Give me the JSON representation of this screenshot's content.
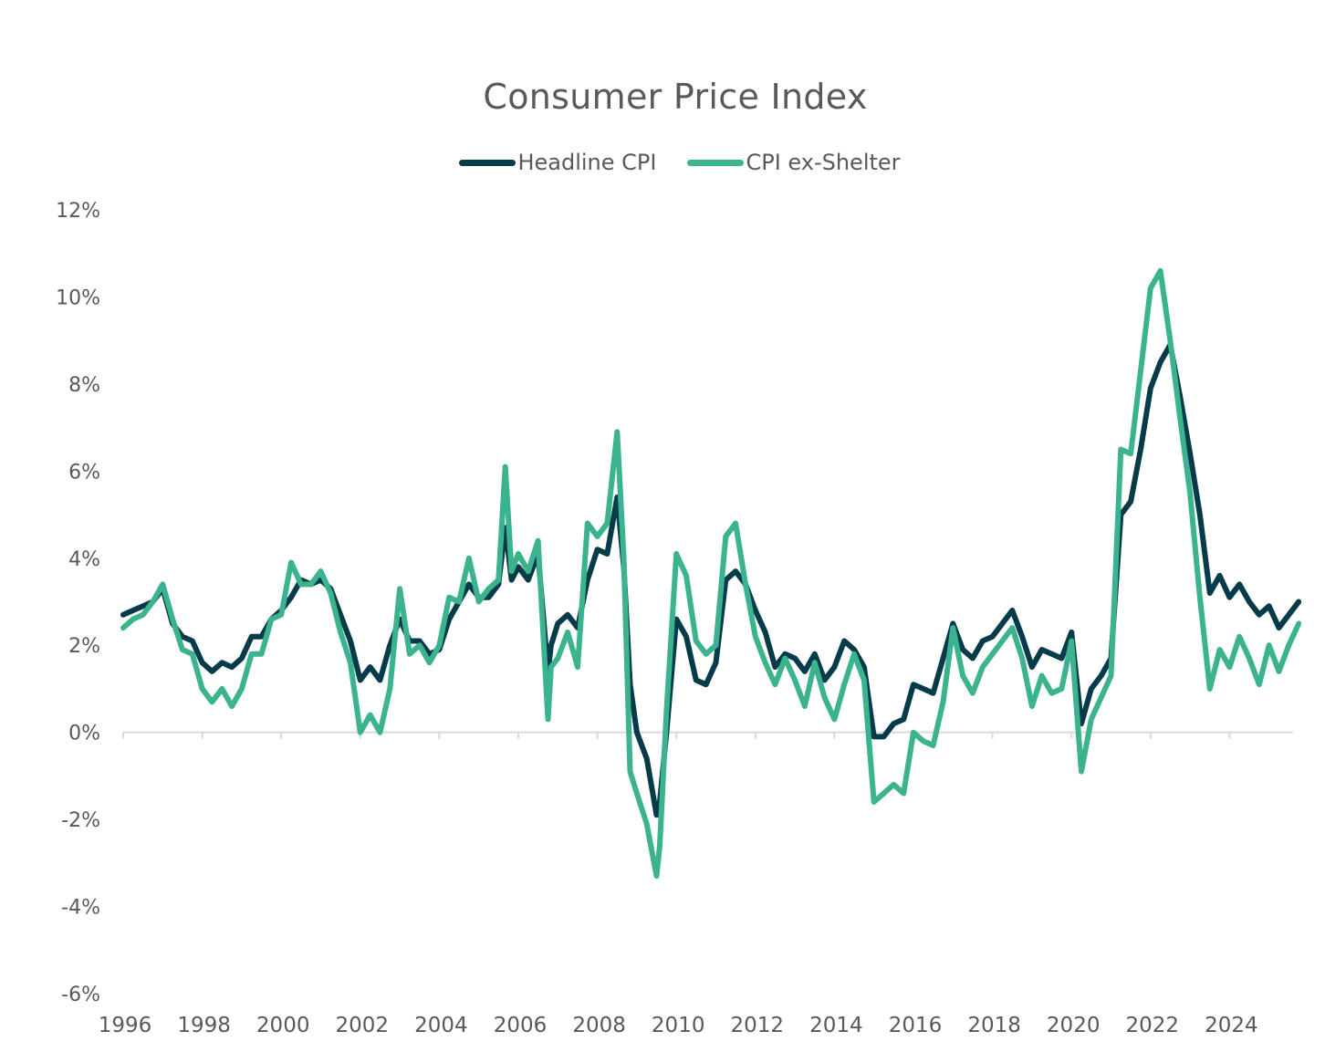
{
  "chart_data": {
    "type": "line",
    "title": "Consumer Price Index",
    "xlabel": "",
    "ylabel": "",
    "xlim": [
      1996,
      2025.75
    ],
    "ylim": [
      -6,
      12
    ],
    "y_ticks": [
      -6,
      -4,
      -2,
      0,
      2,
      4,
      6,
      8,
      10,
      12
    ],
    "y_tick_labels": [
      "-6%",
      "-4%",
      "-2%",
      "0%",
      "2%",
      "4%",
      "6%",
      "8%",
      "10%",
      "12%"
    ],
    "x_ticks": [
      1996,
      1998,
      2000,
      2002,
      2004,
      2006,
      2008,
      2010,
      2012,
      2014,
      2016,
      2018,
      2020,
      2022,
      2024
    ],
    "x_tick_labels": [
      "1996",
      "1998",
      "2000",
      "2002",
      "2004",
      "2006",
      "2008",
      "2010",
      "2012",
      "2014",
      "2016",
      "2018",
      "2020",
      "2022",
      "2024"
    ],
    "grid": false,
    "zero_line": true,
    "legend_position": "top-center",
    "series": [
      {
        "name": "Headline CPI",
        "color": "#063b4a",
        "x": [
          1996.0,
          1996.25,
          1996.5,
          1996.75,
          1997.0,
          1997.25,
          1997.5,
          1997.75,
          1998.0,
          1998.25,
          1998.5,
          1998.75,
          1999.0,
          1999.25,
          1999.5,
          1999.75,
          2000.0,
          2000.25,
          2000.5,
          2000.75,
          2001.0,
          2001.25,
          2001.5,
          2001.75,
          2002.0,
          2002.25,
          2002.5,
          2002.75,
          2003.0,
          2003.25,
          2003.5,
          2003.75,
          2004.0,
          2004.25,
          2004.5,
          2004.75,
          2005.0,
          2005.25,
          2005.5,
          2005.67,
          2005.83,
          2006.0,
          2006.25,
          2006.5,
          2006.75,
          2006.83,
          2007.0,
          2007.25,
          2007.5,
          2007.75,
          2008.0,
          2008.25,
          2008.5,
          2008.67,
          2008.83,
          2009.0,
          2009.25,
          2009.5,
          2009.58,
          2009.75,
          2010.0,
          2010.25,
          2010.5,
          2010.75,
          2011.0,
          2011.25,
          2011.5,
          2011.75,
          2012.0,
          2012.25,
          2012.5,
          2012.75,
          2013.0,
          2013.25,
          2013.5,
          2013.75,
          2014.0,
          2014.25,
          2014.5,
          2014.75,
          2015.0,
          2015.25,
          2015.5,
          2015.75,
          2016.0,
          2016.25,
          2016.5,
          2016.75,
          2017.0,
          2017.25,
          2017.5,
          2017.75,
          2018.0,
          2018.25,
          2018.5,
          2018.75,
          2019.0,
          2019.25,
          2019.5,
          2019.75,
          2020.0,
          2020.25,
          2020.5,
          2020.75,
          2021.0,
          2021.25,
          2021.5,
          2021.75,
          2022.0,
          2022.25,
          2022.5,
          2022.75,
          2023.0,
          2023.25,
          2023.5,
          2023.75,
          2024.0,
          2024.25,
          2024.5,
          2024.75,
          2025.0,
          2025.25,
          2025.5,
          2025.75
        ],
        "values": [
          2.7,
          2.8,
          2.9,
          3.0,
          3.3,
          2.5,
          2.2,
          2.1,
          1.6,
          1.4,
          1.6,
          1.5,
          1.7,
          2.2,
          2.2,
          2.6,
          2.8,
          3.1,
          3.5,
          3.4,
          3.5,
          3.3,
          2.7,
          2.1,
          1.2,
          1.5,
          1.2,
          2.0,
          2.6,
          2.1,
          2.1,
          1.8,
          1.9,
          2.6,
          3.0,
          3.4,
          3.1,
          3.1,
          3.4,
          4.7,
          3.5,
          3.8,
          3.5,
          4.1,
          1.4,
          2.0,
          2.5,
          2.7,
          2.4,
          3.5,
          4.2,
          4.1,
          5.4,
          3.8,
          1.1,
          0.0,
          -0.6,
          -1.9,
          -1.6,
          0.0,
          2.6,
          2.2,
          1.2,
          1.1,
          1.6,
          3.5,
          3.7,
          3.4,
          2.8,
          2.3,
          1.5,
          1.8,
          1.7,
          1.4,
          1.8,
          1.2,
          1.5,
          2.1,
          1.9,
          1.5,
          -0.1,
          -0.1,
          0.2,
          0.3,
          1.1,
          1.0,
          0.9,
          1.7,
          2.5,
          1.9,
          1.7,
          2.1,
          2.2,
          2.5,
          2.8,
          2.2,
          1.5,
          1.9,
          1.8,
          1.7,
          2.3,
          0.2,
          1.0,
          1.3,
          1.7,
          5.0,
          5.3,
          6.5,
          7.9,
          8.5,
          8.9,
          7.7,
          6.4,
          5.0,
          3.2,
          3.6,
          3.1,
          3.4,
          3.0,
          2.7,
          2.9,
          2.4,
          2.7,
          3.0
        ]
      },
      {
        "name": "CPI ex-Shelter",
        "color": "#3bb38e",
        "x": [
          1996.0,
          1996.25,
          1996.5,
          1996.75,
          1997.0,
          1997.25,
          1997.5,
          1997.75,
          1998.0,
          1998.25,
          1998.5,
          1998.75,
          1999.0,
          1999.25,
          1999.5,
          1999.75,
          2000.0,
          2000.25,
          2000.5,
          2000.75,
          2001.0,
          2001.25,
          2001.5,
          2001.75,
          2002.0,
          2002.25,
          2002.5,
          2002.75,
          2003.0,
          2003.25,
          2003.5,
          2003.75,
          2004.0,
          2004.25,
          2004.5,
          2004.75,
          2005.0,
          2005.25,
          2005.5,
          2005.67,
          2005.83,
          2006.0,
          2006.25,
          2006.5,
          2006.75,
          2006.83,
          2007.0,
          2007.25,
          2007.5,
          2007.75,
          2008.0,
          2008.25,
          2008.5,
          2008.67,
          2008.83,
          2009.0,
          2009.25,
          2009.5,
          2009.58,
          2009.75,
          2010.0,
          2010.25,
          2010.5,
          2010.75,
          2011.0,
          2011.25,
          2011.5,
          2011.75,
          2012.0,
          2012.25,
          2012.5,
          2012.75,
          2013.0,
          2013.25,
          2013.5,
          2013.75,
          2014.0,
          2014.25,
          2014.5,
          2014.75,
          2015.0,
          2015.25,
          2015.5,
          2015.75,
          2016.0,
          2016.25,
          2016.5,
          2016.75,
          2017.0,
          2017.25,
          2017.5,
          2017.75,
          2018.0,
          2018.25,
          2018.5,
          2018.75,
          2019.0,
          2019.25,
          2019.5,
          2019.75,
          2020.0,
          2020.25,
          2020.5,
          2020.75,
          2021.0,
          2021.25,
          2021.5,
          2021.75,
          2022.0,
          2022.25,
          2022.5,
          2022.75,
          2023.0,
          2023.25,
          2023.5,
          2023.75,
          2024.0,
          2024.25,
          2024.5,
          2024.75,
          2025.0,
          2025.25,
          2025.5,
          2025.75
        ],
        "values": [
          2.4,
          2.6,
          2.7,
          3.0,
          3.4,
          2.6,
          1.9,
          1.8,
          1.0,
          0.7,
          1.0,
          0.6,
          1.0,
          1.8,
          1.8,
          2.6,
          2.7,
          3.9,
          3.4,
          3.4,
          3.7,
          3.2,
          2.3,
          1.6,
          0.0,
          0.4,
          0.0,
          1.0,
          3.3,
          1.8,
          2.0,
          1.6,
          2.0,
          3.1,
          3.0,
          4.0,
          3.0,
          3.3,
          3.5,
          6.1,
          3.7,
          4.1,
          3.7,
          4.4,
          0.3,
          1.5,
          1.7,
          2.3,
          1.5,
          4.8,
          4.5,
          4.8,
          6.9,
          4.0,
          -0.9,
          -1.4,
          -2.1,
          -3.3,
          -2.6,
          0.5,
          4.1,
          3.6,
          2.1,
          1.8,
          2.0,
          4.5,
          4.8,
          3.4,
          2.2,
          1.6,
          1.1,
          1.7,
          1.2,
          0.6,
          1.6,
          0.8,
          0.3,
          1.1,
          1.8,
          1.2,
          -1.6,
          -1.4,
          -1.2,
          -1.4,
          0.0,
          -0.2,
          -0.3,
          0.7,
          2.4,
          1.3,
          0.9,
          1.5,
          1.8,
          2.1,
          2.4,
          1.7,
          0.6,
          1.3,
          0.9,
          1.0,
          2.1,
          -0.9,
          0.3,
          0.8,
          1.3,
          6.5,
          6.4,
          8.3,
          10.2,
          10.6,
          9.0,
          7.2,
          5.5,
          3.1,
          1.0,
          1.9,
          1.5,
          2.2,
          1.7,
          1.1,
          2.0,
          1.4,
          2.0,
          2.5
        ]
      }
    ]
  }
}
